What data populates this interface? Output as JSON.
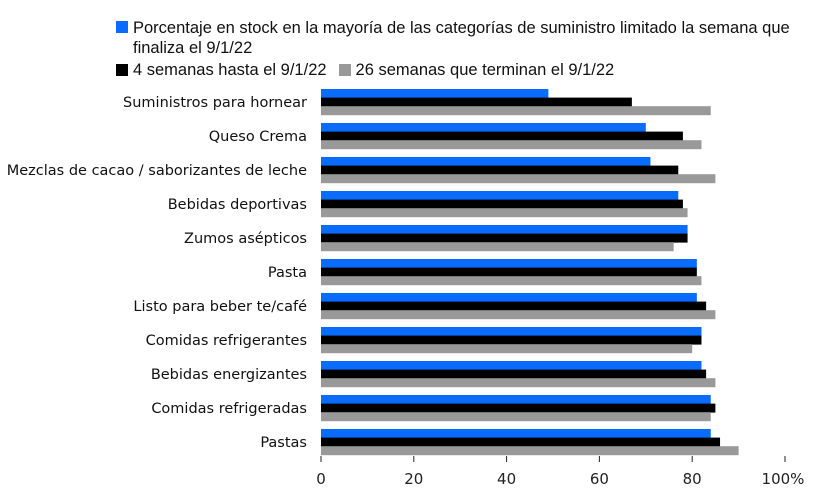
{
  "colors": {
    "series1": "#0a6cff",
    "series2": "#000000",
    "series3": "#999999",
    "axis": "#222222"
  },
  "legend": {
    "series1_label": "Porcentaje en stock en la mayoría de las categorías de suministro limitado la semana que finaliza el 9/1/22",
    "series2_label": "4 semanas hasta el 9/1/22",
    "series3_label": "26 semanas que terminan el 9/1/22"
  },
  "chart_data": {
    "type": "bar",
    "orientation": "horizontal",
    "categories": [
      "Suministros para hornear",
      "Queso Crema",
      "Mezclas de cacao / saborizantes de leche",
      "Bebidas deportivas",
      "Zumos asépticos",
      "Pasta",
      "Listo para beber te/café",
      "Comidas refrigerantes",
      "Bebidas energizantes",
      "Comidas refrigeradas",
      "Pastas"
    ],
    "series": [
      {
        "name": "Porcentaje en stock en la mayoría de las categorías de suministro limitado la semana que finaliza el 9/1/22",
        "values": [
          49,
          70,
          71,
          77,
          79,
          81,
          81,
          82,
          82,
          84,
          84
        ]
      },
      {
        "name": "4 semanas hasta el 9/1/22",
        "values": [
          67,
          78,
          77,
          78,
          79,
          81,
          83,
          82,
          83,
          85,
          86
        ]
      },
      {
        "name": "26 semanas que terminan el 9/1/22",
        "values": [
          84,
          82,
          85,
          79,
          76,
          82,
          85,
          80,
          85,
          84,
          90
        ]
      }
    ],
    "xlim": [
      0,
      100
    ],
    "xticks": [
      "0",
      "20",
      "40",
      "60",
      "80",
      "100%"
    ],
    "grid": false,
    "legend_position": "top"
  }
}
